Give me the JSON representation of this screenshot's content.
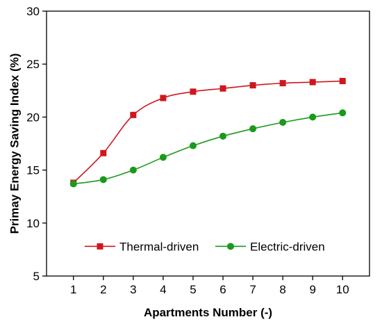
{
  "chart_data": {
    "type": "line",
    "title": "",
    "xlabel": "Apartments Number (-)",
    "ylabel": "Primay Energy Saving Index (%)",
    "x": [
      1,
      2,
      3,
      4,
      5,
      6,
      7,
      8,
      9,
      10
    ],
    "xlim": [
      0.1,
      10.9
    ],
    "ylim": [
      5,
      30
    ],
    "yticks": [
      5,
      10,
      15,
      20,
      25,
      30
    ],
    "xticks": [
      1,
      2,
      3,
      4,
      5,
      6,
      7,
      8,
      9,
      10
    ],
    "grid": false,
    "legend_position": "lower-center",
    "series": [
      {
        "name": "Thermal-driven",
        "color": "#d0161d",
        "marker": "square",
        "values": [
          13.8,
          16.6,
          20.2,
          21.8,
          22.4,
          22.7,
          23.0,
          23.2,
          23.3,
          23.4
        ]
      },
      {
        "name": "Electric-driven",
        "color": "#1a9a1a",
        "marker": "circle",
        "values": [
          13.7,
          14.1,
          15.0,
          16.2,
          17.3,
          18.2,
          18.9,
          19.5,
          20.0,
          20.4
        ]
      }
    ]
  }
}
